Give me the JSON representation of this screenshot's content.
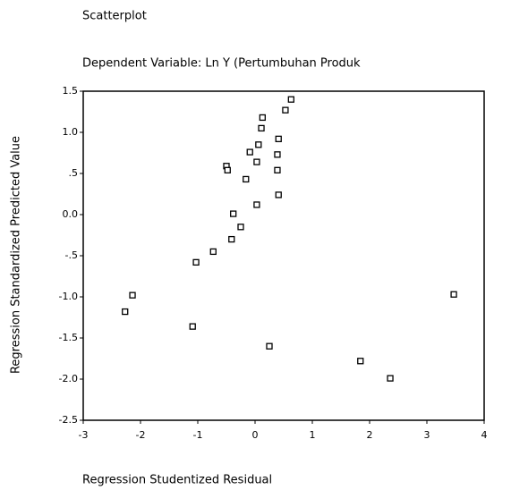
{
  "chart_data": {
    "type": "scatter",
    "title": "Scatterplot",
    "subtitle": "Dependent Variable: Ln Y (Pertumbuhan Produk",
    "x_label": "Regression Studentized Residual",
    "y_label": "Regression Standardized Predicted Value",
    "color": "#000000",
    "x": [
      0.63,
      0.53,
      0.13,
      0.11,
      0.41,
      0.06,
      -0.09,
      0.39,
      0.03,
      -0.5,
      -0.48,
      0.39,
      -0.16,
      0.41,
      0.03,
      -0.38,
      -0.25,
      -0.41,
      -0.73,
      -1.03,
      -2.14,
      -2.27,
      -1.09,
      0.25,
      1.84,
      2.36,
      3.47
    ],
    "values": [
      1.4,
      1.27,
      1.18,
      1.05,
      0.92,
      0.85,
      0.76,
      0.73,
      0.64,
      0.59,
      0.54,
      0.54,
      0.43,
      0.24,
      0.12,
      0.01,
      -0.15,
      -0.3,
      -0.45,
      -0.58,
      -0.98,
      -1.18,
      -1.36,
      -1.6,
      -1.78,
      -1.99,
      -0.97
    ],
    "xlim": [
      -3,
      4
    ],
    "xticks": [
      -3,
      -2,
      -1,
      0,
      1,
      2,
      3,
      4
    ],
    "ylim": [
      -2.5,
      1.5
    ],
    "yticks": [
      1.5,
      {
        "value": 1,
        "label": "1.0"
      },
      {
        "value": 0.5,
        "label": ".5"
      },
      {
        "value": 0,
        "label": "0.0"
      },
      {
        "value": -0.5,
        "label": "-.5"
      },
      {
        "value": -1,
        "label": "-1.0"
      },
      -1.5,
      {
        "value": -2,
        "label": "-2.0"
      },
      -2.5
    ]
  }
}
